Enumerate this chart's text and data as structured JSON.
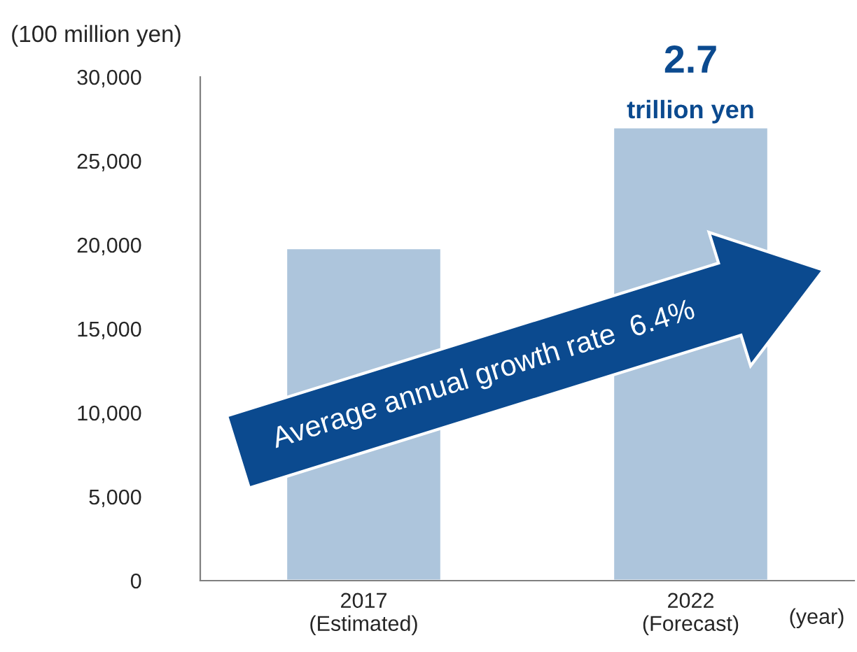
{
  "chart_data": {
    "type": "bar",
    "categories": [
      "2017\n(Estimated)",
      "2022\n(Forecast)"
    ],
    "values": [
      19800,
      27000
    ],
    "color": "#adc5dc",
    "ylabel": "(100 million yen)",
    "xlabel": "(year)",
    "ylim": [
      0,
      30000
    ],
    "yticks": [
      0,
      {
        "value": 5000,
        "label": "5,000"
      },
      {
        "value": 10000,
        "label": "10,000"
      },
      {
        "value": 15000,
        "label": "15,000"
      },
      {
        "value": 20000,
        "label": "20,000"
      },
      {
        "value": 25000,
        "label": "25,000"
      },
      {
        "value": 30000,
        "label": "30,000"
      }
    ],
    "grid": false,
    "legend": false,
    "annotations": [
      {
        "text": "2.7",
        "x": "2022\n(Forecast)",
        "y": 27000
      },
      {
        "text": "trillion yen",
        "x": "2022\n(Forecast)",
        "y": 27000
      },
      "Average annual growth rate  6.4%"
    ]
  }
}
